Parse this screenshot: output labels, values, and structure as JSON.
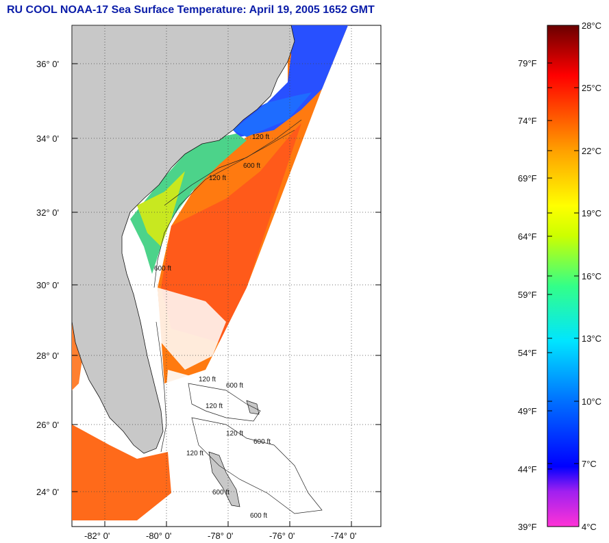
{
  "title": "RU COOL  NOAA-17  Sea Surface Temperature:  April 19, 2005 1652 GMT",
  "map": {
    "lat_labels": [
      "36° 0'",
      "34° 0'",
      "32° 0'",
      "30° 0'",
      "28° 0'",
      "26° 0'",
      "24° 0'"
    ],
    "lon_labels": [
      "-82° 0'",
      "-80° 0'",
      "-78° 0'",
      "-76° 0'",
      "-74° 0'"
    ],
    "contour_labels": [
      "120 ft",
      "600 ft",
      "120 ft",
      "600 ft",
      "120 ft",
      "600 ft",
      "120 ft",
      "600 ft",
      "120 ft",
      "120 ft",
      "600 ft",
      "600 ft"
    ],
    "land_color": "#c8c8c8",
    "background_color": "#ffffff"
  },
  "colorbar": {
    "celsius_labels": [
      "28°C",
      "25°C",
      "22°C",
      "19°C",
      "16°C",
      "13°C",
      "10°C",
      "7°C",
      "4°C"
    ],
    "fahrenheit_labels": [
      "79°F",
      "74°F",
      "69°F",
      "64°F",
      "59°F",
      "54°F",
      "49°F",
      "44°F",
      "39°F"
    ],
    "range_celsius": [
      4,
      28
    ],
    "colors": [
      "#ff33d6",
      "#8a2be2",
      "#0000ff",
      "#0080ff",
      "#00e5ff",
      "#33ff99",
      "#ccff00",
      "#ffff00",
      "#ffa500",
      "#ff4500",
      "#ff0000",
      "#a00000",
      "#6a0000"
    ]
  }
}
